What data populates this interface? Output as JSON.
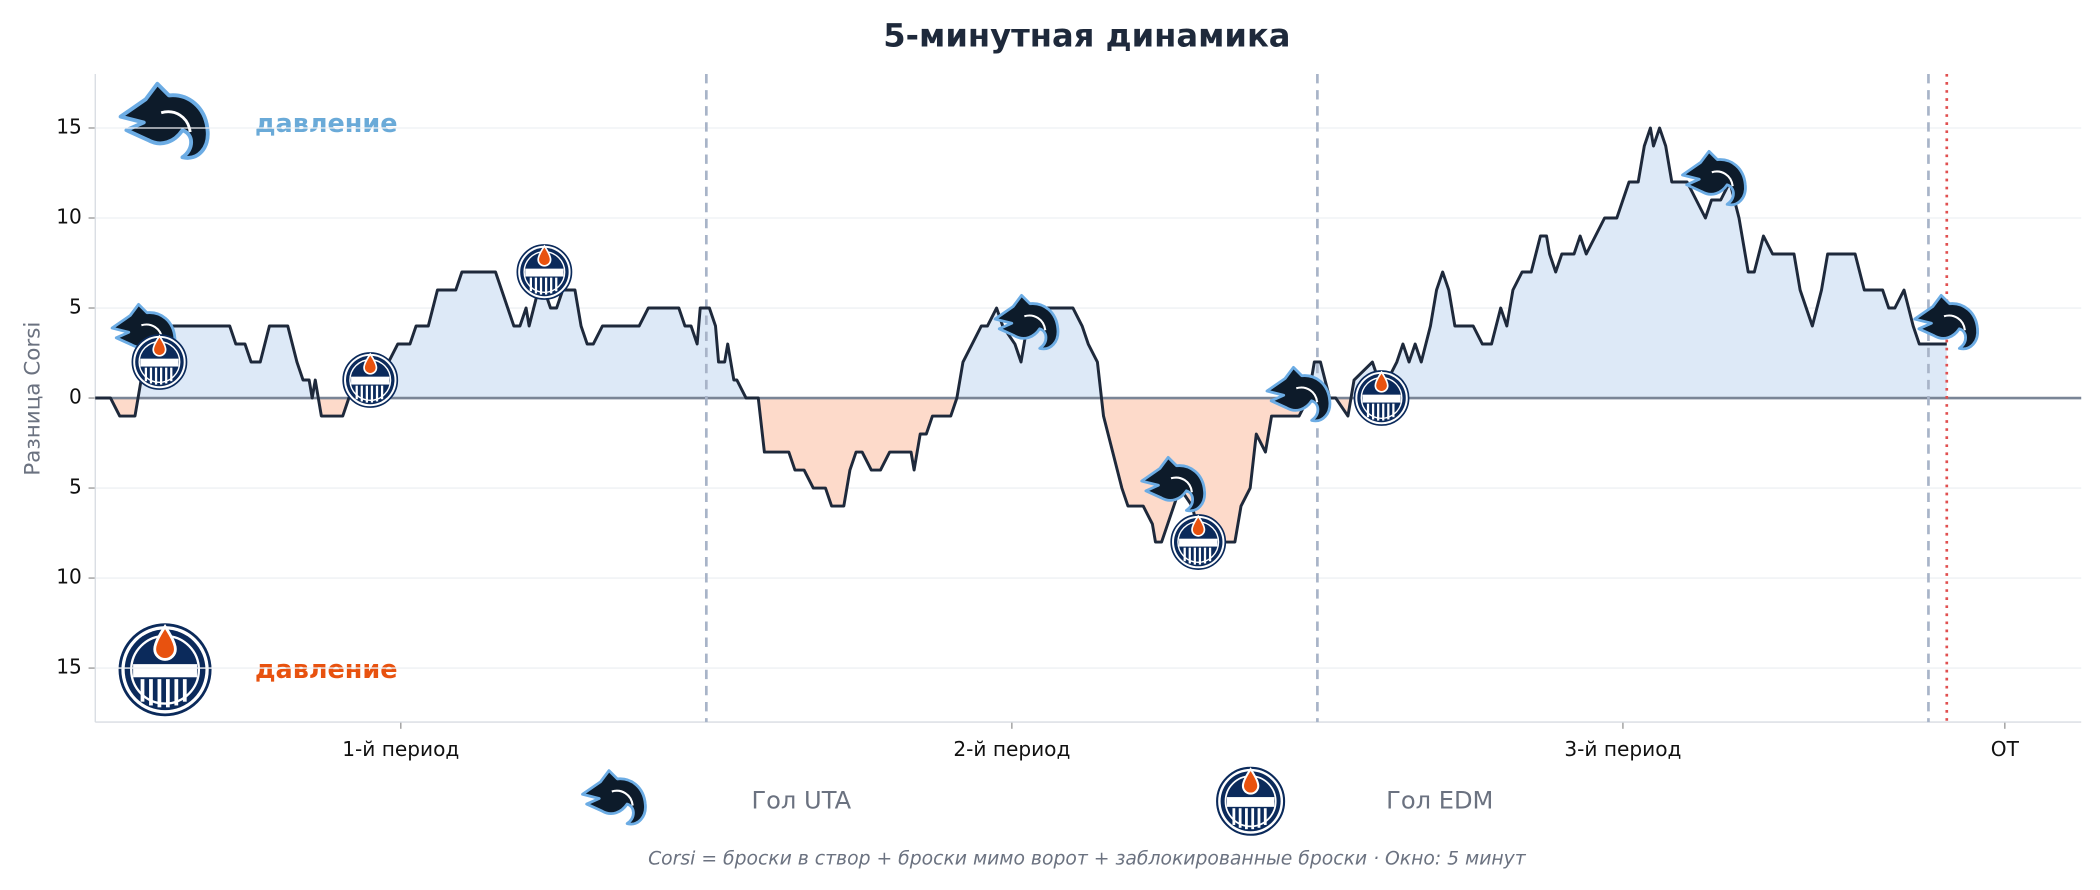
{
  "chart_data": {
    "type": "line",
    "title": "5-минутная динамика",
    "ylabel": "Разница Corsi",
    "footnote": "Corsi = броски в створ + броски мимо ворот + заблокированные броски · Окно: 5 минут",
    "pressure_labels": {
      "top": "давление",
      "bottom": "давление"
    },
    "xlim": [
      0,
      65
    ],
    "ylim": [
      -18,
      18
    ],
    "xticks": [
      {
        "value": 10,
        "label": "1-й период"
      },
      {
        "value": 30,
        "label": "2-й период"
      },
      {
        "value": 50,
        "label": "3-й период"
      },
      {
        "value": 62.5,
        "label": "OT"
      }
    ],
    "yticks": [
      {
        "value": -15,
        "label": "15"
      },
      {
        "value": -10,
        "label": "10"
      },
      {
        "value": -5,
        "label": "5"
      },
      0,
      5,
      10,
      15
    ],
    "grid": true,
    "color": "#1e293b",
    "positive_color": "#dde9f7",
    "negative_color": "#fddaca",
    "period_lines": [
      20,
      40,
      60
    ],
    "end_line": 60.6,
    "x": [
      0,
      0.5,
      0.8,
      1.3,
      1.4,
      1.6,
      1.8,
      4.4,
      4.6,
      4.9,
      5.1,
      5.4,
      5.7,
      6.3,
      6.6,
      6.8,
      7.0,
      7.1,
      7.2,
      7.4,
      8.1,
      8.3,
      8.7,
      9.3,
      9.9,
      10.3,
      10.5,
      10.9,
      11.2,
      11.8,
      12.0,
      13.1,
      13.5,
      13.7,
      13.9,
      14.1,
      14.2,
      14.5,
      14.7,
      14.9,
      15.1,
      15.3,
      15.7,
      15.9,
      16.1,
      16.3,
      16.6,
      17.8,
      18.1,
      19.1,
      19.3,
      19.5,
      19.7,
      19.8,
      20.1,
      20.3,
      20.4,
      20.6,
      20.7,
      20.9,
      21.0,
      21.3,
      21.7,
      21.9,
      22.7,
      22.9,
      23.2,
      23.5,
      23.9,
      24.1,
      24.5,
      24.7,
      24.9,
      25.1,
      25.4,
      25.7,
      26.0,
      26.7,
      26.8,
      27.0,
      27.2,
      27.4,
      28.0,
      28.2,
      28.4,
      28.7,
      29.0,
      29.2,
      29.5,
      29.7,
      30.1,
      30.3,
      30.5,
      30.9,
      32.0,
      32.3,
      32.5,
      32.8,
      33.0,
      33.3,
      33.6,
      33.8,
      34.3,
      34.6,
      34.7,
      34.9,
      35.1,
      35.3,
      35.5,
      35.9,
      36.2,
      37.3,
      37.5,
      37.8,
      38.0,
      38.3,
      38.5,
      39.4,
      39.7,
      39.9,
      40.1,
      40.4,
      40.6,
      41.0,
      41.2,
      41.8,
      42.0,
      42.3,
      42.6,
      42.8,
      43.0,
      43.2,
      43.4,
      43.7,
      43.9,
      44.1,
      44.3,
      44.5,
      45.1,
      45.4,
      45.7,
      46.0,
      46.2,
      46.4,
      46.7,
      47.0,
      47.3,
      47.5,
      47.6,
      47.8,
      48.0,
      48.4,
      48.6,
      48.8,
      49.1,
      49.4,
      49.8,
      50.0,
      50.2,
      50.5,
      50.7,
      50.9,
      51.0,
      51.2,
      51.4,
      51.6,
      52.1,
      52.4,
      52.7,
      52.9,
      53.2,
      53.5,
      53.8,
      54.1,
      54.3,
      54.6,
      54.9,
      55.6,
      55.8,
      56.2,
      56.5,
      56.7,
      57.6,
      57.9,
      58.5,
      58.7,
      58.9,
      59.2,
      59.5,
      59.7,
      60.6
    ],
    "values": [
      0,
      0,
      -1,
      -1,
      0,
      2,
      4,
      4,
      3,
      3,
      2,
      2,
      4,
      4,
      2,
      1,
      1,
      0,
      1,
      -1,
      -1,
      0,
      1,
      1,
      3,
      3,
      4,
      4,
      6,
      6,
      7,
      7,
      5,
      4,
      4,
      5,
      4,
      6,
      6,
      5,
      5,
      6,
      6,
      4,
      3,
      3,
      4,
      4,
      5,
      5,
      4,
      4,
      3,
      5,
      5,
      4,
      2,
      2,
      3,
      1,
      1,
      0,
      0,
      -3,
      -3,
      -4,
      -4,
      -5,
      -5,
      -6,
      -6,
      -4,
      -3,
      -3,
      -4,
      -4,
      -3,
      -3,
      -4,
      -2,
      -2,
      -1,
      -1,
      0,
      2,
      3,
      4,
      4,
      5,
      4,
      3,
      2,
      4,
      5,
      5,
      4,
      3,
      2,
      -1,
      -3,
      -5,
      -6,
      -6,
      -7,
      -8,
      -8,
      -7,
      -6,
      -5,
      -6,
      -8,
      -8,
      -6,
      -5,
      -2,
      -3,
      -1,
      -1,
      0,
      2,
      2,
      0,
      0,
      -1,
      1,
      2,
      1,
      1,
      2,
      3,
      2,
      3,
      2,
      4,
      6,
      7,
      6,
      4,
      4,
      3,
      3,
      5,
      4,
      6,
      7,
      7,
      9,
      9,
      8,
      7,
      8,
      8,
      9,
      8,
      9,
      10,
      10,
      11,
      12,
      12,
      14,
      15,
      14,
      15,
      14,
      12,
      12,
      11,
      10,
      11,
      11,
      12,
      10,
      7,
      7,
      9,
      8,
      8,
      6,
      4,
      6,
      8,
      8,
      6,
      6,
      5,
      5,
      6,
      4,
      3,
      3
    ],
    "goal_series": [
      {
        "name": "Гол UTA",
        "x": [
          1.6,
          30.5,
          35.3,
          39.4,
          53.0,
          60.6
        ],
        "values": [
          3.5,
          4,
          -5,
          0,
          12,
          4
        ]
      },
      {
        "name": "Гол EDM",
        "x": [
          2.1,
          9.0,
          14.7,
          36.1,
          42.1
        ],
        "values": [
          2,
          1,
          7,
          -8,
          0
        ]
      }
    ]
  }
}
